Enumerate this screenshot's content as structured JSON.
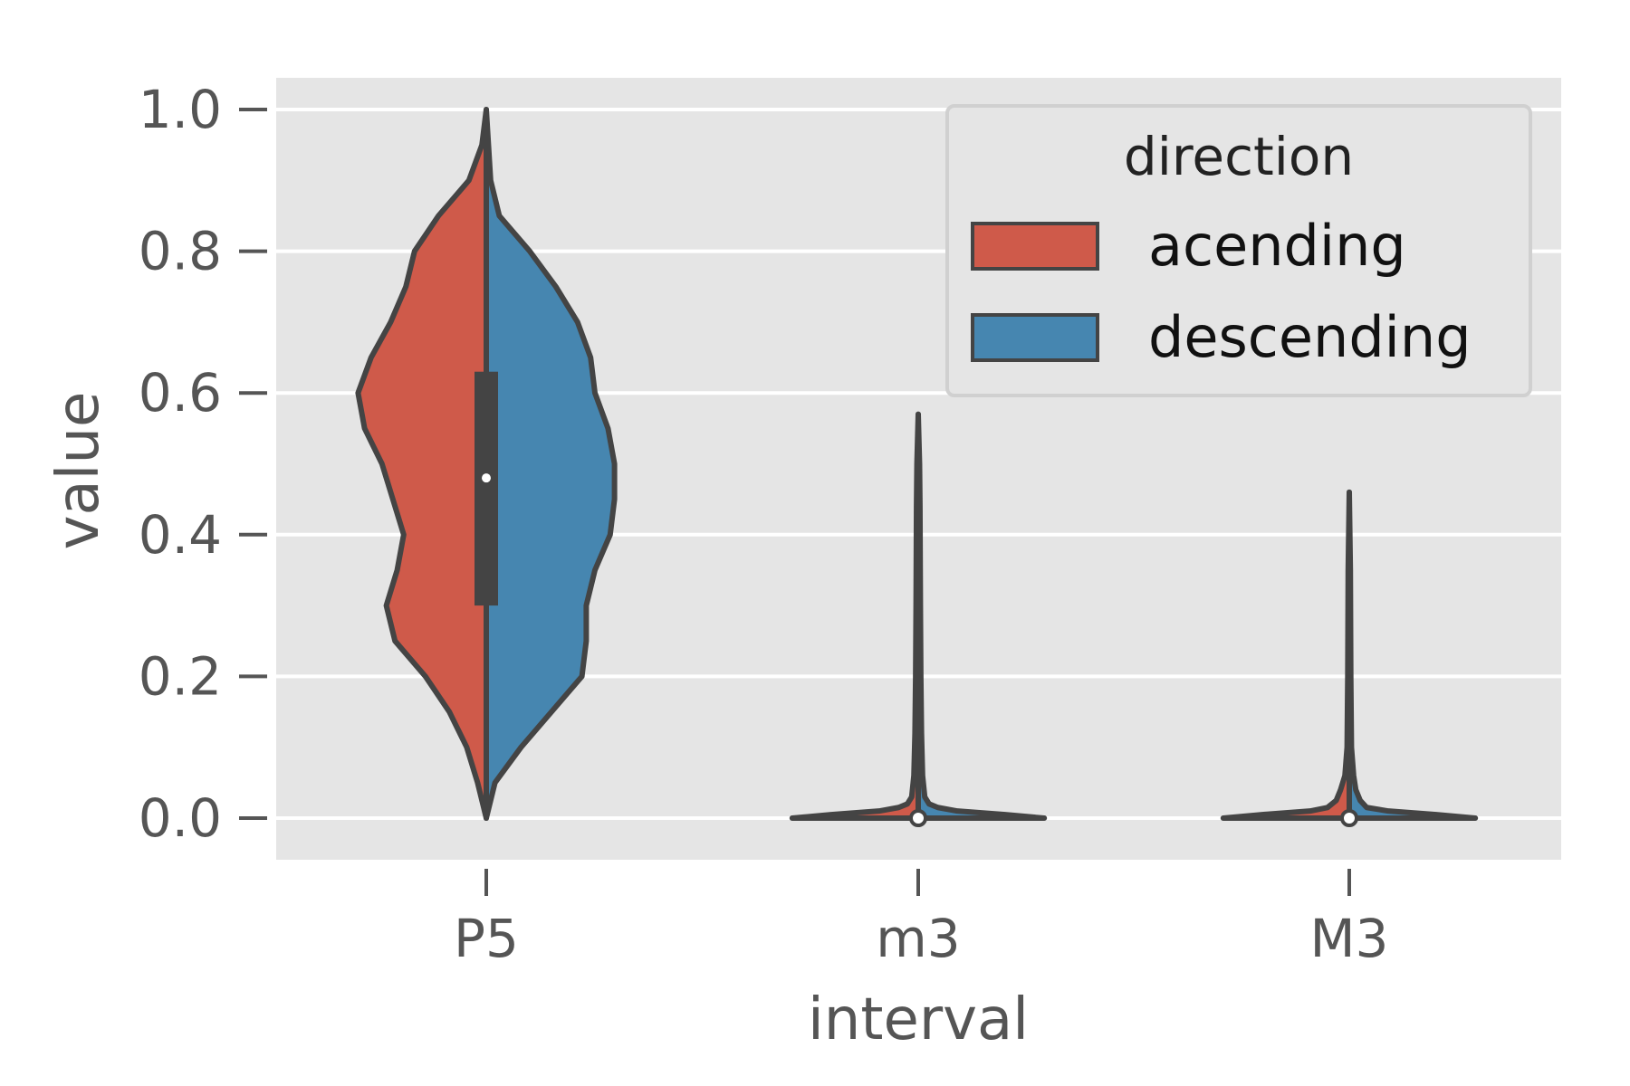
{
  "chart_data": {
    "type": "violin",
    "split": true,
    "style": "ggplot",
    "xlabel": "interval",
    "ylabel": "value",
    "categories": [
      "P5",
      "m3",
      "M3"
    ],
    "ylim": [
      -0.055,
      1.045
    ],
    "yticks": [
      "0.0",
      "0.2",
      "0.4",
      "0.6",
      "0.8",
      "1.0"
    ],
    "ytick_values": [
      0.0,
      0.2,
      0.4,
      0.6,
      0.8,
      1.0
    ],
    "grid": true,
    "legend": {
      "title": "direction",
      "placement": "top-right",
      "entries": [
        {
          "label": "acending",
          "color": "#cf5a4a"
        },
        {
          "label": "descending",
          "color": "#4686b0"
        }
      ]
    },
    "series": [
      {
        "name": "acending",
        "color": "#cf5a4a",
        "violins": [
          {
            "category": "P5",
            "profile": [
              [
                0.0,
                0.0
              ],
              [
                0.05,
                0.04
              ],
              [
                0.1,
                0.09
              ],
              [
                0.15,
                0.17
              ],
              [
                0.2,
                0.28
              ],
              [
                0.25,
                0.42
              ],
              [
                0.3,
                0.46
              ],
              [
                0.35,
                0.41
              ],
              [
                0.4,
                0.38
              ],
              [
                0.45,
                0.43
              ],
              [
                0.5,
                0.48
              ],
              [
                0.55,
                0.56
              ],
              [
                0.6,
                0.59
              ],
              [
                0.65,
                0.53
              ],
              [
                0.7,
                0.44
              ],
              [
                0.75,
                0.37
              ],
              [
                0.8,
                0.33
              ],
              [
                0.85,
                0.22
              ],
              [
                0.9,
                0.08
              ],
              [
                0.95,
                0.02
              ],
              [
                1.0,
                0.0
              ]
            ]
          },
          {
            "category": "m3",
            "profile": [
              [
                0.0,
                0.58
              ],
              [
                0.005,
                0.4
              ],
              [
                0.01,
                0.18
              ],
              [
                0.015,
                0.09
              ],
              [
                0.02,
                0.05
              ],
              [
                0.03,
                0.03
              ],
              [
                0.06,
                0.02
              ],
              [
                0.12,
                0.015
              ],
              [
                0.2,
                0.012
              ],
              [
                0.3,
                0.01
              ],
              [
                0.44,
                0.008
              ],
              [
                0.5,
                0.006
              ],
              [
                0.57,
                0.0
              ]
            ]
          },
          {
            "category": "M3",
            "profile": [
              [
                0.0,
                0.58
              ],
              [
                0.005,
                0.4
              ],
              [
                0.01,
                0.18
              ],
              [
                0.015,
                0.1
              ],
              [
                0.025,
                0.06
              ],
              [
                0.04,
                0.04
              ],
              [
                0.06,
                0.02
              ],
              [
                0.1,
                0.01
              ],
              [
                0.2,
                0.007
              ],
              [
                0.35,
                0.005
              ],
              [
                0.46,
                0.0
              ]
            ]
          }
        ]
      },
      {
        "name": "descending",
        "color": "#4686b0",
        "violins": [
          {
            "category": "P5",
            "profile": [
              [
                0.0,
                0.0
              ],
              [
                0.05,
                0.04
              ],
              [
                0.1,
                0.16
              ],
              [
                0.15,
                0.3
              ],
              [
                0.2,
                0.44
              ],
              [
                0.25,
                0.46
              ],
              [
                0.3,
                0.46
              ],
              [
                0.35,
                0.5
              ],
              [
                0.4,
                0.57
              ],
              [
                0.45,
                0.59
              ],
              [
                0.5,
                0.59
              ],
              [
                0.55,
                0.56
              ],
              [
                0.6,
                0.5
              ],
              [
                0.65,
                0.48
              ],
              [
                0.7,
                0.42
              ],
              [
                0.75,
                0.32
              ],
              [
                0.8,
                0.2
              ],
              [
                0.85,
                0.06
              ],
              [
                0.9,
                0.02
              ],
              [
                0.95,
                0.01
              ],
              [
                1.0,
                0.0
              ]
            ]
          },
          {
            "category": "m3",
            "profile": [
              [
                0.0,
                0.58
              ],
              [
                0.005,
                0.4
              ],
              [
                0.01,
                0.18
              ],
              [
                0.015,
                0.09
              ],
              [
                0.02,
                0.05
              ],
              [
                0.03,
                0.03
              ],
              [
                0.06,
                0.02
              ],
              [
                0.12,
                0.015
              ],
              [
                0.2,
                0.012
              ],
              [
                0.3,
                0.01
              ],
              [
                0.44,
                0.008
              ],
              [
                0.5,
                0.006
              ],
              [
                0.57,
                0.0
              ]
            ]
          },
          {
            "category": "M3",
            "profile": [
              [
                0.0,
                0.58
              ],
              [
                0.005,
                0.4
              ],
              [
                0.01,
                0.18
              ],
              [
                0.015,
                0.08
              ],
              [
                0.025,
                0.05
              ],
              [
                0.04,
                0.03
              ],
              [
                0.06,
                0.02
              ],
              [
                0.1,
                0.01
              ],
              [
                0.2,
                0.007
              ],
              [
                0.35,
                0.005
              ],
              [
                0.46,
                0.0
              ]
            ]
          }
        ]
      }
    ],
    "inner_box": [
      {
        "category": "P5",
        "q1": 0.3,
        "median": 0.48,
        "q3": 0.63,
        "min": 0.0,
        "max": 1.0
      },
      {
        "category": "m3",
        "q1": 0.0,
        "median": 0.0,
        "q3": 0.0,
        "min": 0.0,
        "max": 0.57
      },
      {
        "category": "M3",
        "q1": 0.0,
        "median": 0.0,
        "q3": 0.0,
        "min": 0.0,
        "max": 0.46
      }
    ]
  }
}
